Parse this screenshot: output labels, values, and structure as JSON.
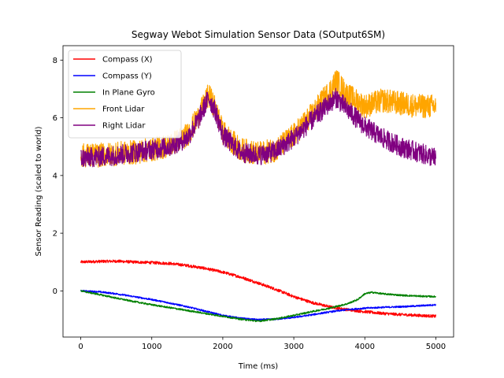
{
  "chart_data": {
    "type": "line",
    "title": "Segway Webot Simulation Sensor Data (SOutput6SM)",
    "xlabel": "Time (ms)",
    "ylabel": "Sensor Reading (scaled to world)",
    "xlim": [
      -250,
      5250
    ],
    "ylim": [
      -1.6,
      8.5
    ],
    "xticks": [
      0,
      1000,
      2000,
      3000,
      4000,
      5000
    ],
    "yticks": [
      0,
      2,
      4,
      6,
      8
    ],
    "grid": false,
    "legend_position": "top-left",
    "series": [
      {
        "name": "Compass (X)",
        "color": "#ff0000",
        "noise": 0.05,
        "x": [
          0,
          250,
          500,
          750,
          1000,
          1250,
          1500,
          1750,
          2000,
          2250,
          2500,
          2750,
          3000,
          3250,
          3500,
          3750,
          4000,
          4250,
          4500,
          4750,
          5000
        ],
        "values": [
          1.0,
          1.02,
          1.03,
          1.0,
          0.98,
          0.95,
          0.88,
          0.78,
          0.65,
          0.48,
          0.27,
          0.05,
          -0.2,
          -0.4,
          -0.55,
          -0.65,
          -0.72,
          -0.78,
          -0.82,
          -0.85,
          -0.88
        ]
      },
      {
        "name": "Compass (Y)",
        "color": "#0000ff",
        "noise": 0.03,
        "x": [
          0,
          250,
          500,
          750,
          1000,
          1250,
          1500,
          1750,
          2000,
          2250,
          2500,
          2750,
          3000,
          3250,
          3500,
          3750,
          4000,
          4250,
          4500,
          4750,
          5000
        ],
        "values": [
          0.0,
          -0.03,
          -0.1,
          -0.2,
          -0.3,
          -0.42,
          -0.55,
          -0.7,
          -0.85,
          -0.95,
          -1.0,
          -0.98,
          -0.92,
          -0.83,
          -0.73,
          -0.65,
          -0.6,
          -0.57,
          -0.55,
          -0.52,
          -0.48
        ]
      },
      {
        "name": "In Plane Gyro",
        "color": "#008000",
        "noise": 0.03,
        "x": [
          0,
          250,
          500,
          750,
          1000,
          1250,
          1500,
          1750,
          2000,
          2250,
          2500,
          2750,
          3000,
          3250,
          3500,
          3750,
          3900,
          4000,
          4100,
          4250,
          4500,
          4750,
          5000
        ],
        "values": [
          0.0,
          -0.12,
          -0.25,
          -0.37,
          -0.48,
          -0.58,
          -0.68,
          -0.78,
          -0.88,
          -0.98,
          -1.05,
          -0.97,
          -0.85,
          -0.72,
          -0.6,
          -0.45,
          -0.3,
          -0.1,
          -0.05,
          -0.1,
          -0.15,
          -0.18,
          -0.2
        ]
      },
      {
        "name": "Front Lidar",
        "color": "#ffa500",
        "noise": 0.42,
        "x": [
          0,
          250,
          500,
          750,
          1000,
          1250,
          1500,
          1650,
          1800,
          1900,
          2000,
          2250,
          2500,
          2750,
          3000,
          3250,
          3500,
          3600,
          3750,
          4000,
          4250,
          4500,
          4750,
          5000
        ],
        "values": [
          4.7,
          4.7,
          4.75,
          4.8,
          4.9,
          5.05,
          5.4,
          6.0,
          6.8,
          6.3,
          5.5,
          4.9,
          4.75,
          4.9,
          5.4,
          6.1,
          6.9,
          7.3,
          6.8,
          6.4,
          6.6,
          6.5,
          6.4,
          6.4
        ]
      },
      {
        "name": "Right Lidar",
        "color": "#800080",
        "noise": 0.35,
        "x": [
          0,
          250,
          500,
          750,
          1000,
          1250,
          1500,
          1650,
          1800,
          1900,
          2000,
          2250,
          2500,
          2750,
          3000,
          3250,
          3500,
          3600,
          3750,
          4000,
          4250,
          4500,
          4750,
          5000
        ],
        "values": [
          4.6,
          4.65,
          4.7,
          4.8,
          4.9,
          5.0,
          5.3,
          5.9,
          6.7,
          6.2,
          5.4,
          4.8,
          4.7,
          4.85,
          5.3,
          5.9,
          6.5,
          6.7,
          6.3,
          5.7,
          5.3,
          5.0,
          4.8,
          4.6
        ]
      }
    ]
  }
}
